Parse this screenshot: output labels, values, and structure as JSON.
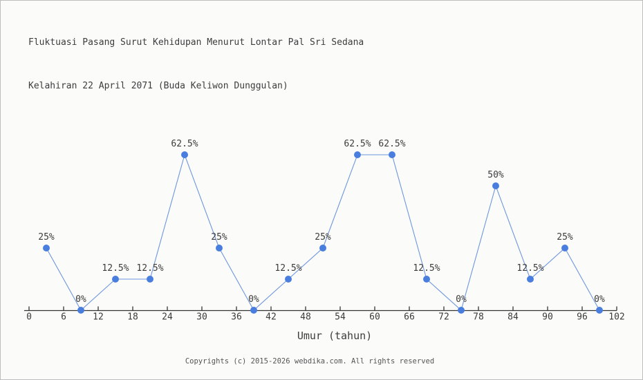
{
  "page": {
    "title_line1": "Fluktuasi Pasang Surut Kehidupan Menurut Lontar Pal Sri Sedana",
    "title_line2": "Kelahiran 22 April 2071 (Buda Keliwon Dunggulan)",
    "footer": "Copyrights (c) 2015-2026 webdika.com. All rights reserved"
  },
  "chart_data": {
    "type": "line",
    "title": "Fluktuasi Pasang Surut Kehidupan Menurut Lontar Pal Sri Sedana Kelahiran 22 April 2071 (Buda Keliwon Dunggulan)",
    "xlabel": "Umur (tahun)",
    "ylabel": "",
    "x": [
      3,
      9,
      15,
      21,
      27,
      33,
      39,
      45,
      51,
      57,
      63,
      69,
      75,
      81,
      87,
      93,
      99
    ],
    "values": [
      25,
      0,
      12.5,
      12.5,
      62.5,
      25,
      0,
      12.5,
      25,
      62.5,
      62.5,
      12.5,
      0,
      50,
      12.5,
      25,
      0
    ],
    "point_labels": [
      "25%",
      "0%",
      "12.5%",
      "12.5%",
      "62.5%",
      "25%",
      "0%",
      "12.5%",
      "25%",
      "62.5%",
      "62.5%",
      "12.5%",
      "0%",
      "50%",
      "12.5%",
      "25%",
      "0%"
    ],
    "x_ticks": [
      0,
      6,
      12,
      18,
      24,
      30,
      36,
      42,
      48,
      54,
      60,
      66,
      72,
      78,
      84,
      90,
      96,
      102
    ],
    "xlim": [
      0,
      102
    ],
    "ylim": [
      0,
      100
    ],
    "grid": false,
    "legend": "none",
    "colors": {
      "marker": "#4a7ede",
      "line": "#6d96dd",
      "axis": "#333333",
      "text": "#3b3b3b"
    }
  }
}
